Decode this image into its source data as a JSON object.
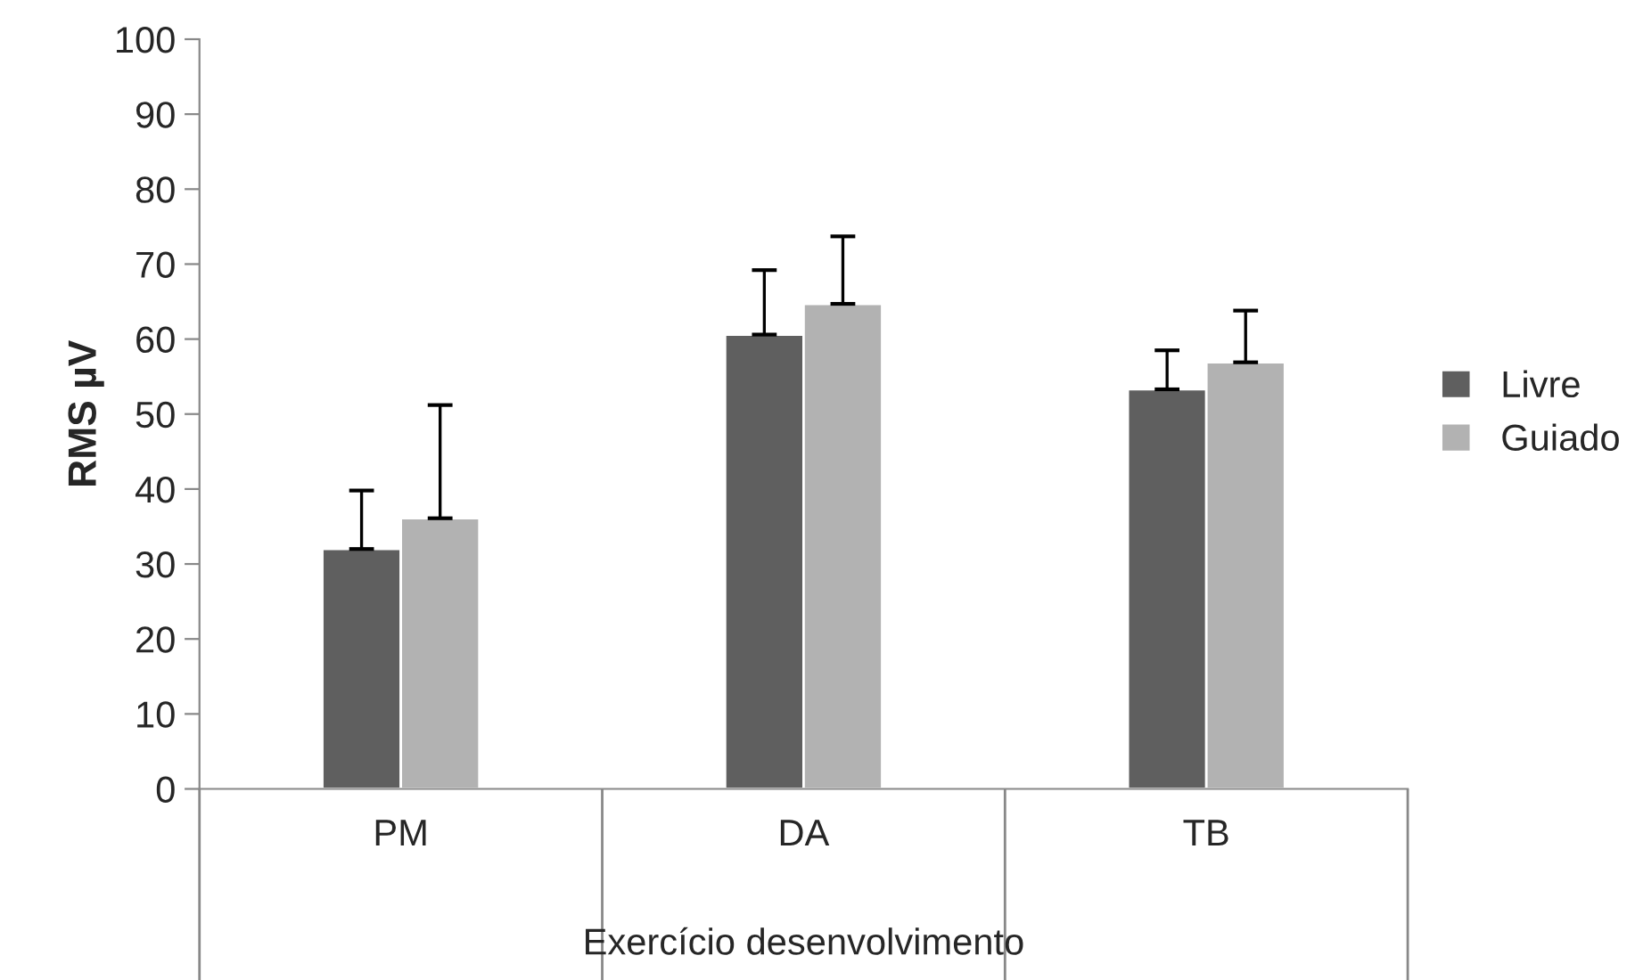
{
  "chart_data": {
    "type": "bar",
    "xlabel": "Exercício desenvolvimento",
    "ylabel": "RMS µV",
    "categories": [
      "PM",
      "DA",
      "TB"
    ],
    "series": [
      {
        "name": "Livre",
        "color": "#5f5f5f",
        "values": [
          32.0,
          60.6,
          53.3
        ],
        "errors": [
          [
            32.0,
            39.8
          ],
          [
            60.6,
            69.2
          ],
          [
            53.3,
            58.5
          ]
        ]
      },
      {
        "name": "Guiado",
        "color": "#b2b2b2",
        "values": [
          36.1,
          64.7,
          56.9
        ],
        "errors": [
          [
            36.1,
            51.2
          ],
          [
            64.7,
            73.7
          ],
          [
            56.9,
            63.8
          ]
        ]
      }
    ],
    "ylim": [
      0,
      100
    ],
    "yticks": [
      0,
      10,
      20,
      30,
      40,
      50,
      60,
      70,
      80,
      90,
      100
    ],
    "grid": false,
    "legend": "right"
  }
}
